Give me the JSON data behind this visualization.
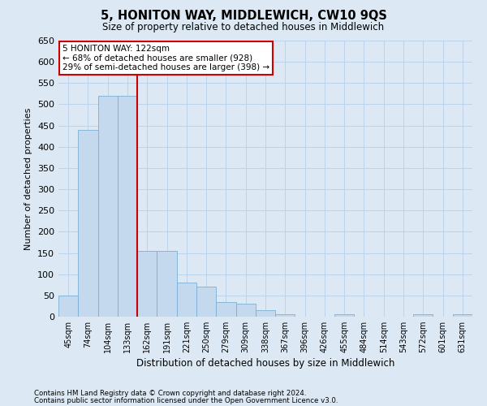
{
  "title": "5, HONITON WAY, MIDDLEWICH, CW10 9QS",
  "subtitle": "Size of property relative to detached houses in Middlewich",
  "xlabel": "Distribution of detached houses by size in Middlewich",
  "ylabel": "Number of detached properties",
  "categories": [
    "45sqm",
    "74sqm",
    "104sqm",
    "133sqm",
    "162sqm",
    "191sqm",
    "221sqm",
    "250sqm",
    "279sqm",
    "309sqm",
    "338sqm",
    "367sqm",
    "396sqm",
    "426sqm",
    "455sqm",
    "484sqm",
    "514sqm",
    "543sqm",
    "572sqm",
    "601sqm",
    "631sqm"
  ],
  "values": [
    50,
    440,
    520,
    520,
    155,
    155,
    80,
    70,
    35,
    30,
    15,
    5,
    0,
    0,
    5,
    0,
    0,
    0,
    5,
    0,
    5
  ],
  "bar_color": "#c5d9ee",
  "bar_edgecolor": "#7aafd4",
  "vline_color": "#cc0000",
  "vline_x_index": 3,
  "ylim": [
    0,
    650
  ],
  "yticks": [
    0,
    50,
    100,
    150,
    200,
    250,
    300,
    350,
    400,
    450,
    500,
    550,
    600,
    650
  ],
  "annotation_text": "5 HONITON WAY: 122sqm\n← 68% of detached houses are smaller (928)\n29% of semi-detached houses are larger (398) →",
  "annotation_box_color": "#ffffff",
  "annotation_box_edgecolor": "#cc0000",
  "bg_color": "#dce9f5",
  "grid_color": "#b8cfe8",
  "footer_line1": "Contains HM Land Registry data © Crown copyright and database right 2024.",
  "footer_line2": "Contains public sector information licensed under the Open Government Licence v3.0."
}
